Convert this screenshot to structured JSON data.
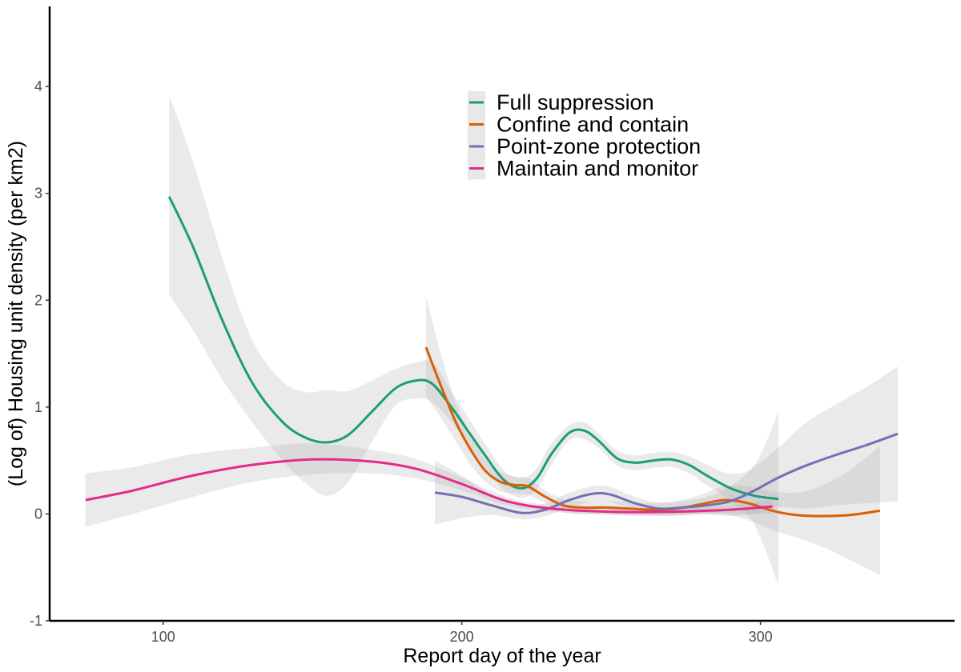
{
  "chart_data": {
    "type": "line",
    "title": "",
    "xlabel": "Report day of the year",
    "ylabel": "(Log of) Housing unit density (per km2)",
    "xlim": [
      62,
      365
    ],
    "ylim": [
      -1,
      4.75
    ],
    "xticks": [
      100,
      200,
      300
    ],
    "yticks": [
      -1,
      0,
      1,
      2,
      3,
      4
    ],
    "grid": false,
    "legend_position": "top-center",
    "series": [
      {
        "name": "Full suppression",
        "color": "#1b9e77",
        "x": [
          102,
          110,
          120,
          130,
          140,
          148,
          155,
          162,
          170,
          178,
          185,
          190,
          196,
          202,
          208,
          214,
          220,
          225,
          230,
          236,
          241,
          246,
          252,
          258,
          264,
          270,
          276,
          282,
          290,
          298,
          306
        ],
        "y": [
          2.97,
          2.5,
          1.8,
          1.22,
          0.86,
          0.71,
          0.67,
          0.74,
          0.96,
          1.18,
          1.25,
          1.22,
          1.02,
          0.78,
          0.54,
          0.32,
          0.24,
          0.33,
          0.56,
          0.76,
          0.78,
          0.68,
          0.52,
          0.48,
          0.5,
          0.51,
          0.46,
          0.36,
          0.24,
          0.17,
          0.14
        ],
        "ci_lower": [
          2.05,
          1.72,
          1.25,
          0.85,
          0.5,
          0.28,
          0.17,
          0.3,
          0.68,
          1.02,
          1.08,
          1.05,
          0.88,
          0.66,
          0.43,
          0.23,
          0.15,
          0.23,
          0.46,
          0.69,
          0.7,
          0.61,
          0.45,
          0.41,
          0.43,
          0.44,
          0.38,
          0.27,
          0.12,
          -0.1,
          -0.67
        ],
        "ci_upper": [
          3.92,
          3.3,
          2.38,
          1.62,
          1.24,
          1.14,
          1.16,
          1.15,
          1.25,
          1.36,
          1.42,
          1.42,
          1.17,
          0.91,
          0.65,
          0.41,
          0.33,
          0.43,
          0.66,
          0.83,
          0.86,
          0.75,
          0.59,
          0.55,
          0.57,
          0.58,
          0.54,
          0.46,
          0.38,
          0.46,
          0.95
        ]
      },
      {
        "name": "Confine and contain",
        "color": "#d95f02",
        "x": [
          188,
          193,
          198,
          203,
          208,
          213,
          218,
          222,
          228,
          234,
          240,
          248,
          256,
          264,
          272,
          280,
          288,
          296,
          304,
          312,
          320,
          330,
          340
        ],
        "y": [
          1.56,
          1.2,
          0.86,
          0.6,
          0.4,
          0.3,
          0.27,
          0.26,
          0.16,
          0.08,
          0.06,
          0.06,
          0.05,
          0.04,
          0.05,
          0.09,
          0.13,
          0.1,
          0.03,
          -0.01,
          -0.02,
          -0.01,
          0.03
        ],
        "ci_lower": [
          1.1,
          0.9,
          0.68,
          0.46,
          0.3,
          0.21,
          0.19,
          0.18,
          0.1,
          0.02,
          0.0,
          0.0,
          -0.01,
          -0.02,
          -0.02,
          0.0,
          0.0,
          -0.06,
          -0.15,
          -0.22,
          -0.3,
          -0.43,
          -0.57
        ],
        "ci_upper": [
          2.04,
          1.5,
          1.04,
          0.74,
          0.5,
          0.39,
          0.35,
          0.34,
          0.22,
          0.14,
          0.12,
          0.12,
          0.11,
          0.1,
          0.12,
          0.18,
          0.26,
          0.26,
          0.21,
          0.2,
          0.26,
          0.41,
          0.64
        ]
      },
      {
        "name": "Point-zone protection",
        "color": "#7570b3",
        "x": [
          191,
          200,
          210,
          220,
          228,
          236,
          244,
          250,
          258,
          266,
          274,
          282,
          290,
          298,
          306,
          315,
          325,
          335,
          346
        ],
        "y": [
          0.2,
          0.16,
          0.08,
          0.01,
          0.04,
          0.13,
          0.19,
          0.18,
          0.1,
          0.05,
          0.06,
          0.08,
          0.12,
          0.22,
          0.34,
          0.45,
          0.55,
          0.64,
          0.75
        ],
        "ci_lower": [
          -0.1,
          -0.04,
          -0.01,
          -0.05,
          -0.02,
          0.06,
          0.12,
          0.11,
          0.04,
          -0.01,
          0.0,
          0.0,
          -0.02,
          0.0,
          0.06,
          0.05,
          0.08,
          0.1,
          0.12
        ],
        "ci_upper": [
          0.5,
          0.36,
          0.18,
          0.07,
          0.1,
          0.2,
          0.26,
          0.25,
          0.16,
          0.11,
          0.12,
          0.16,
          0.26,
          0.44,
          0.62,
          0.85,
          1.02,
          1.18,
          1.38
        ]
      },
      {
        "name": "Maintain and monitor",
        "color": "#e7298a",
        "x": [
          74,
          90,
          110,
          130,
          150,
          170,
          185,
          200,
          215,
          230,
          250,
          270,
          290,
          304
        ],
        "y": [
          0.13,
          0.22,
          0.36,
          0.46,
          0.51,
          0.49,
          0.42,
          0.28,
          0.12,
          0.05,
          0.02,
          0.02,
          0.04,
          0.07
        ],
        "ci_lower": [
          -0.12,
          0.0,
          0.16,
          0.3,
          0.37,
          0.38,
          0.33,
          0.22,
          0.08,
          0.02,
          -0.01,
          -0.01,
          0.0,
          0.0
        ],
        "ci_upper": [
          0.38,
          0.44,
          0.56,
          0.62,
          0.66,
          0.6,
          0.51,
          0.34,
          0.16,
          0.08,
          0.05,
          0.05,
          0.08,
          0.14
        ]
      }
    ]
  }
}
